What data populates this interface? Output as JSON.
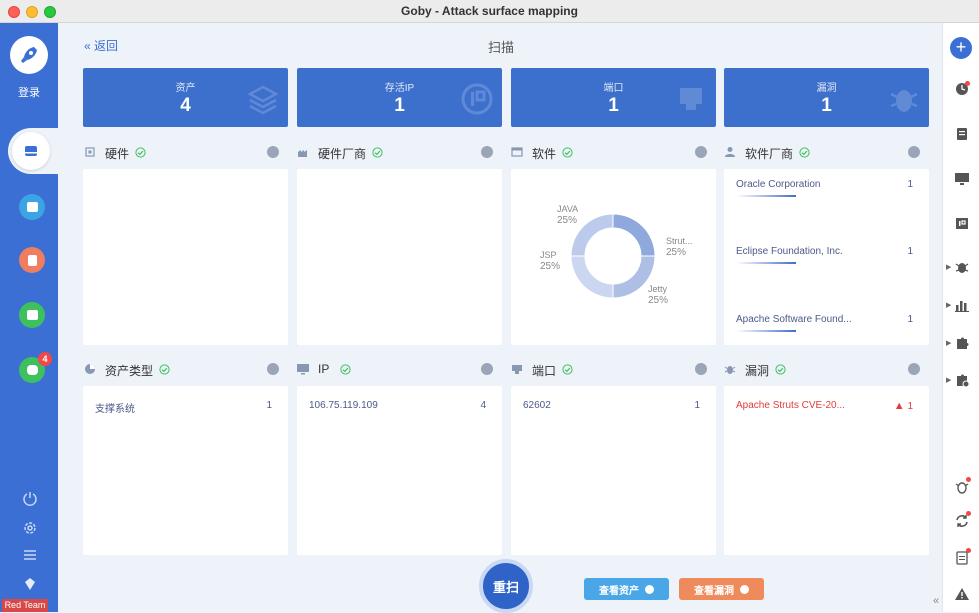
{
  "window": {
    "title": "Goby - Attack surface mapping"
  },
  "sidebar": {
    "login_label": "登录",
    "badge_count": "4",
    "team_label": "Red Team"
  },
  "header": {
    "back_label": "返回",
    "title": "扫描"
  },
  "stats": [
    {
      "label": "资产",
      "value": "4"
    },
    {
      "label": "存活IP",
      "value": "1"
    },
    {
      "label": "端口",
      "value": "1"
    },
    {
      "label": "漏洞",
      "value": "1"
    }
  ],
  "sections": {
    "hardware": {
      "title": "硬件"
    },
    "hardware_vendor": {
      "title": "硬件厂商"
    },
    "software": {
      "title": "软件"
    },
    "software_vendor": {
      "title": "软件厂商",
      "items": [
        {
          "name": "Oracle Corporation",
          "count": "1"
        },
        {
          "name": "Eclipse Foundation, Inc.",
          "count": "1"
        },
        {
          "name": "Apache Software Found...",
          "count": "1"
        }
      ]
    },
    "asset_type": {
      "title": "资产类型",
      "items": [
        {
          "name": "支撑系统",
          "count": "1"
        }
      ]
    },
    "ip": {
      "title": "IP",
      "items": [
        {
          "name": "106.75.119.109",
          "count": "4"
        }
      ]
    },
    "port": {
      "title": "端口",
      "items": [
        {
          "name": "62602",
          "count": "1"
        }
      ]
    },
    "vuln": {
      "title": "漏洞",
      "items": [
        {
          "name": "Apache Struts CVE-20...",
          "count": "1"
        }
      ]
    }
  },
  "chart_data": {
    "type": "pie",
    "categories": [
      "JAVA",
      "Strut...",
      "Jetty",
      "JSP"
    ],
    "values": [
      25,
      25,
      25,
      25
    ],
    "value_labels": [
      "25%",
      "25%",
      "25%",
      "25%"
    ],
    "colors": [
      "#8fa9dd",
      "#aebfe6",
      "#cbd7f0",
      "#bccbec"
    ]
  },
  "actions": {
    "rescan_label": "重扫",
    "view_assets_label": "查看资产",
    "view_vulns_label": "查看漏洞",
    "view_assets_color": "#4aa6e6",
    "view_vulns_color": "#ef8a5c"
  }
}
